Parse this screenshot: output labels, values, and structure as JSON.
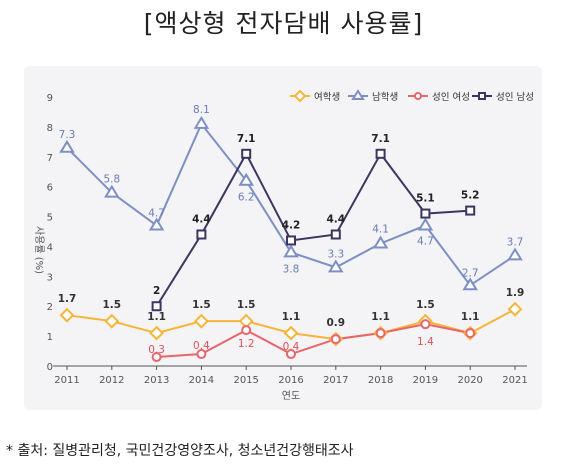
{
  "title": "[액상형 전자담배 사용률]",
  "source": "* 출처: 질병관리청, 국민건강영양조사, 청소년건강행태조사",
  "chart_data": {
    "type": "line",
    "xlabel": "연도",
    "ylabel": "사용률 (%)",
    "ylim": [
      0,
      9
    ],
    "yticks": [
      "0",
      "1",
      "2",
      "3",
      "4",
      "5",
      "6",
      "7",
      "8",
      "9"
    ],
    "categories": [
      "2011",
      "2012",
      "2013",
      "2014",
      "2015",
      "2016",
      "2017",
      "2018",
      "2019",
      "2020",
      "2021"
    ],
    "legend_position": "top-right",
    "grid": false,
    "series": [
      {
        "name": "여학생",
        "color": "#f7b538",
        "marker": "diamond",
        "values": [
          1.7,
          1.5,
          1.1,
          1.5,
          1.5,
          1.1,
          0.9,
          1.1,
          1.5,
          1.1,
          1.9
        ],
        "labels": [
          "1.7",
          "1.5",
          "1.1",
          "1.5",
          "1.5",
          "1.1",
          "0.9",
          "1.1",
          "1.5",
          "1.1",
          "1.9"
        ],
        "label_color": "#333333"
      },
      {
        "name": "남학생",
        "color": "#7d8fc4",
        "marker": "triangle",
        "values": [
          7.3,
          5.8,
          4.7,
          8.1,
          6.2,
          3.8,
          3.3,
          4.1,
          4.7,
          2.7,
          3.7
        ],
        "labels": [
          "7.3",
          "5.8",
          "4.7",
          "8.1",
          "6.2",
          "3.8",
          "3.3",
          "4.1",
          "4.7",
          "2.7",
          "3.7"
        ],
        "label_color": "#6b7db8"
      },
      {
        "name": "성인 여성",
        "color": "#e8656b",
        "marker": "circle",
        "values": [
          null,
          null,
          0.3,
          0.4,
          1.2,
          0.4,
          0.9,
          1.1,
          1.4,
          1.1,
          null
        ],
        "labels": [
          "",
          "",
          "0.3",
          "0.4",
          "1.2",
          "0.4",
          "",
          "",
          "1.4",
          "",
          ""
        ],
        "label_color": "#e0525a"
      },
      {
        "name": "성인 남성",
        "color": "#3b3660",
        "marker": "square",
        "values": [
          null,
          null,
          2.0,
          4.4,
          7.1,
          4.2,
          4.4,
          7.1,
          5.1,
          5.2,
          null
        ],
        "labels": [
          "",
          "",
          "2",
          "4.4",
          "7.1",
          "4.2",
          "4.4",
          "7.1",
          "5.1",
          "5.2",
          ""
        ],
        "label_color": "#222222"
      }
    ]
  }
}
